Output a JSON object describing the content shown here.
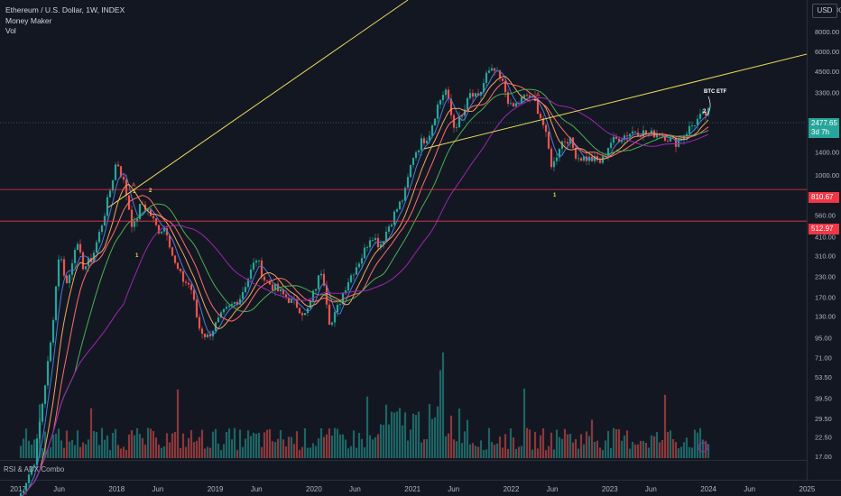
{
  "legend": {
    "symbol": "Ethereum / U.S. Dollar, 1W, INDEX",
    "indicator": "Money Maker",
    "volume": "Vol"
  },
  "currency": "USD",
  "lower_pane_label": "RSI & ADX Combo",
  "price_tag": {
    "value": "2477.65",
    "countdown": "3d 7h",
    "color": "#26a69a"
  },
  "level_tags": [
    {
      "value": "810.67",
      "color": "#f23645"
    },
    {
      "value": "512.97",
      "color": "#f23645"
    }
  ],
  "annotations": [
    "BTC ETF",
    "1",
    "2",
    "1",
    "2",
    "1",
    "A",
    "A"
  ],
  "colors": {
    "up": "#26a69a",
    "down": "#ef5350",
    "trendline": "#e8d95a",
    "ma_fast": "#f7a35c",
    "ma_mid": "#ff6d6d",
    "ma_blue": "#4e7bd6",
    "ma_green": "#4caf50",
    "ma_purple": "#9c27b0",
    "level": "#f23645"
  },
  "chart_data": {
    "type": "candlestick",
    "x_ticks": [
      "2017",
      "Jun",
      "2018",
      "Jun",
      "2019",
      "Jun",
      "2020",
      "Jun",
      "2021",
      "Jun",
      "2022",
      "Jun",
      "2023",
      "Jun",
      "2024",
      "Jun",
      "2025"
    ],
    "y_ticks": [
      "11000.00",
      "8000.00",
      "6000.00",
      "4500.00",
      "3300.00",
      "1900.00",
      "1400.00",
      "1000.00",
      "560.00",
      "410.00",
      "310.00",
      "230.00",
      "170.00",
      "130.00",
      "95.00",
      "71.00",
      "53.50",
      "39.50",
      "29.50",
      "22.50",
      "17.00"
    ],
    "y_scale": "log",
    "horizontal_levels": [
      810.67,
      512.97
    ],
    "last_price": 2477.65,
    "anchors": [
      [
        "2017-01",
        9
      ],
      [
        "2017-03",
        16
      ],
      [
        "2017-05",
        90
      ],
      [
        "2017-06",
        330
      ],
      [
        "2017-07",
        200
      ],
      [
        "2017-08",
        380
      ],
      [
        "2017-09",
        260
      ],
      [
        "2017-10",
        300
      ],
      [
        "2017-11",
        450
      ],
      [
        "2017-12",
        720
      ],
      [
        "2018-01",
        1250
      ],
      [
        "2018-02",
        850
      ],
      [
        "2018-03",
        450
      ],
      [
        "2018-04",
        670
      ],
      [
        "2018-05",
        580
      ],
      [
        "2018-06",
        450
      ],
      [
        "2018-07",
        470
      ],
      [
        "2018-08",
        280
      ],
      [
        "2018-09",
        220
      ],
      [
        "2018-10",
        200
      ],
      [
        "2018-11",
        110
      ],
      [
        "2018-12",
        95
      ],
      [
        "2019-02",
        135
      ],
      [
        "2019-04",
        170
      ],
      [
        "2019-06",
        300
      ],
      [
        "2019-07",
        220
      ],
      [
        "2019-09",
        180
      ],
      [
        "2019-11",
        150
      ],
      [
        "2019-12",
        130
      ],
      [
        "2020-02",
        260
      ],
      [
        "2020-03",
        110
      ],
      [
        "2020-05",
        210
      ],
      [
        "2020-07",
        320
      ],
      [
        "2020-08",
        430
      ],
      [
        "2020-09",
        360
      ],
      [
        "2020-11",
        600
      ],
      [
        "2020-12",
        740
      ],
      [
        "2021-01",
        1300
      ],
      [
        "2021-02",
        1600
      ],
      [
        "2021-03",
        1800
      ],
      [
        "2021-04",
        2700
      ],
      [
        "2021-05",
        3500
      ],
      [
        "2021-06",
        2000
      ],
      [
        "2021-07",
        2300
      ],
      [
        "2021-08",
        3200
      ],
      [
        "2021-09",
        3000
      ],
      [
        "2021-10",
        4300
      ],
      [
        "2021-11",
        4500
      ],
      [
        "2021-12",
        3700
      ],
      [
        "2022-01",
        2600
      ],
      [
        "2022-03",
        3200
      ],
      [
        "2022-04",
        2800
      ],
      [
        "2022-05",
        2000
      ],
      [
        "2022-06",
        1100
      ],
      [
        "2022-07",
        1600
      ],
      [
        "2022-08",
        1700
      ],
      [
        "2022-09",
        1300
      ],
      [
        "2022-11",
        1250
      ],
      [
        "2022-12",
        1200
      ],
      [
        "2023-01",
        1600
      ],
      [
        "2023-03",
        1800
      ],
      [
        "2023-04",
        1900
      ],
      [
        "2023-06",
        1800
      ],
      [
        "2023-07",
        1850
      ],
      [
        "2023-09",
        1600
      ],
      [
        "2023-10",
        1800
      ],
      [
        "2023-11",
        2050
      ],
      [
        "2023-12",
        2300
      ],
      [
        "2024-01",
        2478
      ]
    ]
  }
}
